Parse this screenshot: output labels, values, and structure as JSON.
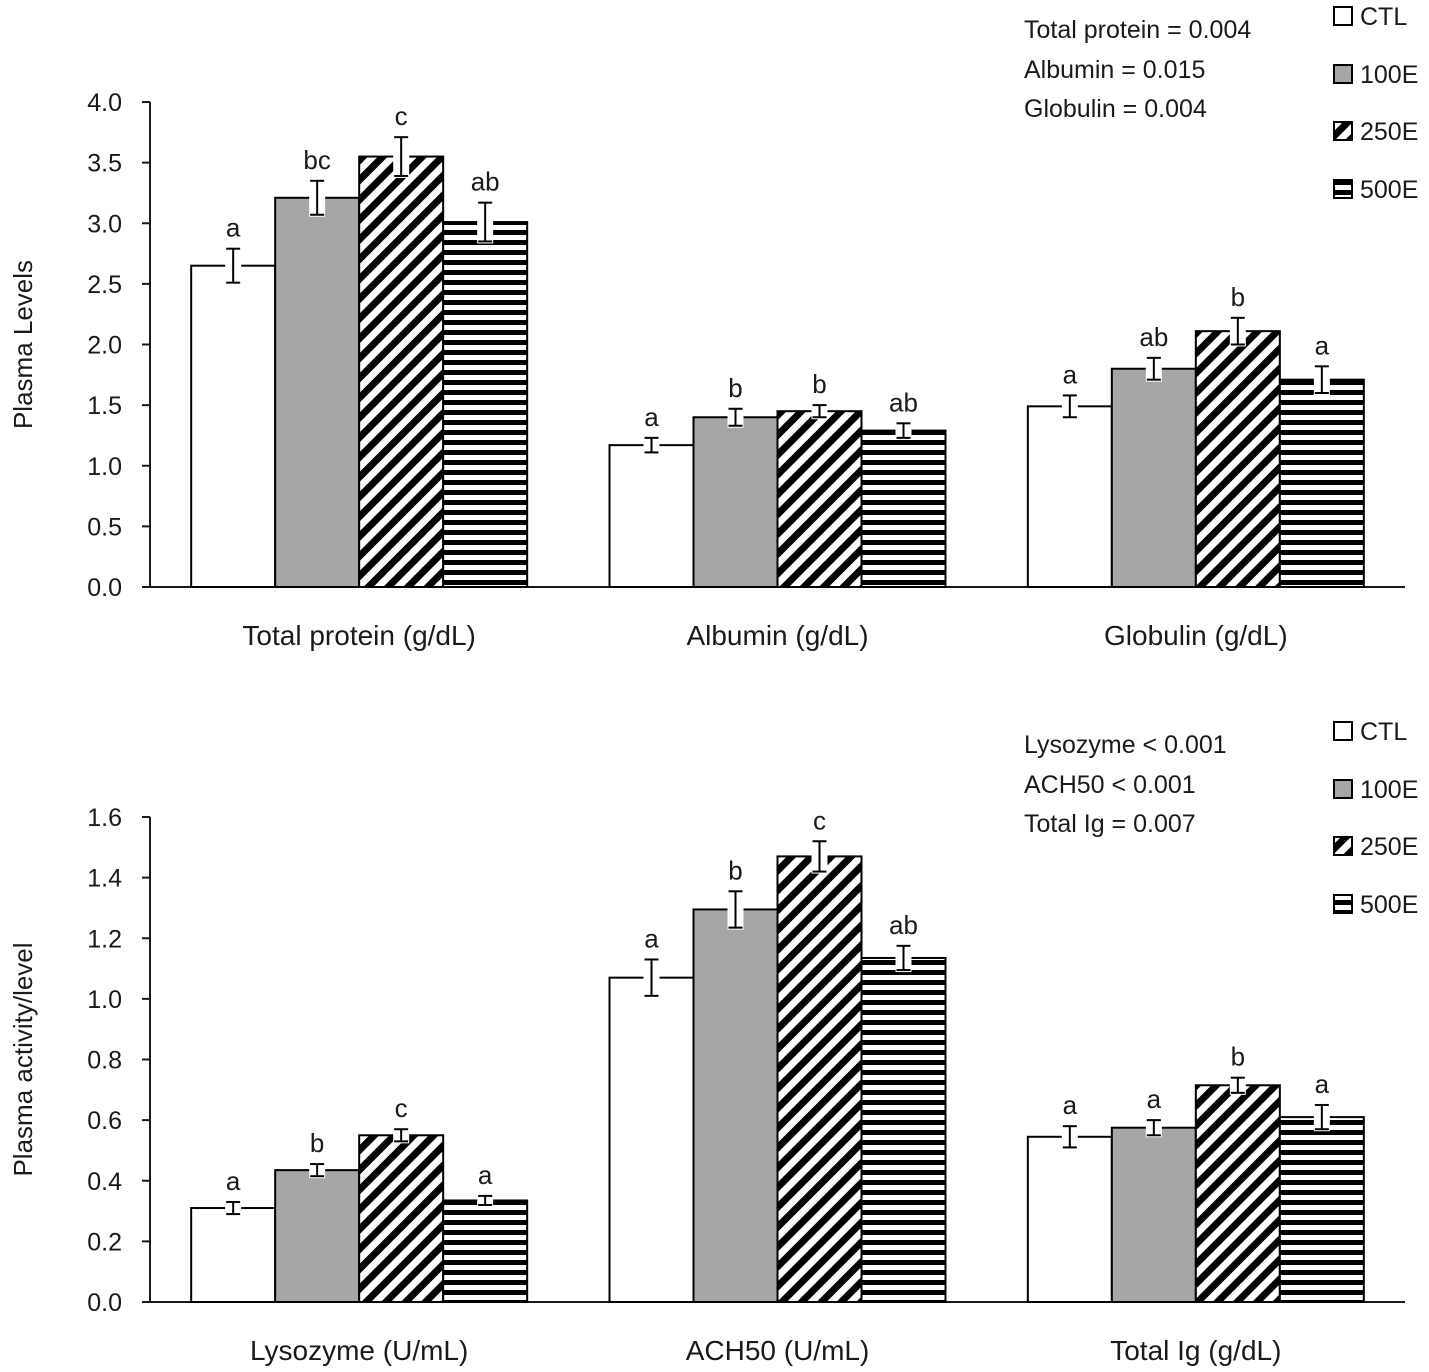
{
  "legend": [
    {
      "key": "ctl",
      "label": "CTL"
    },
    {
      "key": "e100",
      "label": "100E"
    },
    {
      "key": "e250",
      "label": "250E"
    },
    {
      "key": "e500",
      "label": "500E"
    }
  ],
  "chart_data": [
    {
      "type": "bar",
      "ylabel": "Plasma Levels",
      "ylim": [
        0,
        4.0
      ],
      "yticks": [
        0.0,
        0.5,
        1.0,
        1.5,
        2.0,
        2.5,
        3.0,
        3.5,
        4.0
      ],
      "categories": [
        "Total protein (g/dL)",
        "Albumin (g/dL)",
        "Globulin (g/dL)"
      ],
      "pvalues": [
        "Total protein = 0.004",
        "Albumin = 0.015",
        "Globulin = 0.004"
      ],
      "series": [
        {
          "name": "CTL",
          "values": [
            2.65,
            1.17,
            1.49
          ],
          "errors": [
            0.14,
            0.06,
            0.09
          ],
          "letters": [
            "a",
            "a",
            "a"
          ]
        },
        {
          "name": "100E",
          "values": [
            3.21,
            1.4,
            1.8
          ],
          "errors": [
            0.14,
            0.07,
            0.09
          ],
          "letters": [
            "bc",
            "b",
            "ab"
          ]
        },
        {
          "name": "250E",
          "values": [
            3.55,
            1.45,
            2.11
          ],
          "errors": [
            0.16,
            0.05,
            0.11
          ],
          "letters": [
            "c",
            "b",
            "b"
          ]
        },
        {
          "name": "500E",
          "values": [
            3.01,
            1.29,
            1.71
          ],
          "errors": [
            0.16,
            0.06,
            0.11
          ],
          "letters": [
            "ab",
            "ab",
            "a"
          ]
        }
      ]
    },
    {
      "type": "bar",
      "ylabel": "Plasma activity/level",
      "ylim": [
        0,
        1.6
      ],
      "yticks": [
        0.0,
        0.2,
        0.4,
        0.6,
        0.8,
        1.0,
        1.2,
        1.4,
        1.6
      ],
      "categories": [
        "Lysozyme (U/mL)",
        "ACH50 (U/mL)",
        "Total Ig (g/dL)"
      ],
      "pvalues": [
        "Lysozyme < 0.001",
        "ACH50 < 0.001",
        "Total Ig = 0.007"
      ],
      "series": [
        {
          "name": "CTL",
          "values": [
            0.31,
            1.07,
            0.545
          ],
          "errors": [
            0.02,
            0.06,
            0.035
          ],
          "letters": [
            "a",
            "a",
            "a"
          ]
        },
        {
          "name": "100E",
          "values": [
            0.435,
            1.295,
            0.575
          ],
          "errors": [
            0.02,
            0.06,
            0.025
          ],
          "letters": [
            "b",
            "b",
            "a"
          ]
        },
        {
          "name": "250E",
          "values": [
            0.55,
            1.47,
            0.715
          ],
          "errors": [
            0.02,
            0.05,
            0.025
          ],
          "letters": [
            "c",
            "c",
            "b"
          ]
        },
        {
          "name": "500E",
          "values": [
            0.335,
            1.135,
            0.61
          ],
          "errors": [
            0.015,
            0.04,
            0.04
          ],
          "letters": [
            "a",
            "ab",
            "a"
          ]
        }
      ]
    }
  ]
}
